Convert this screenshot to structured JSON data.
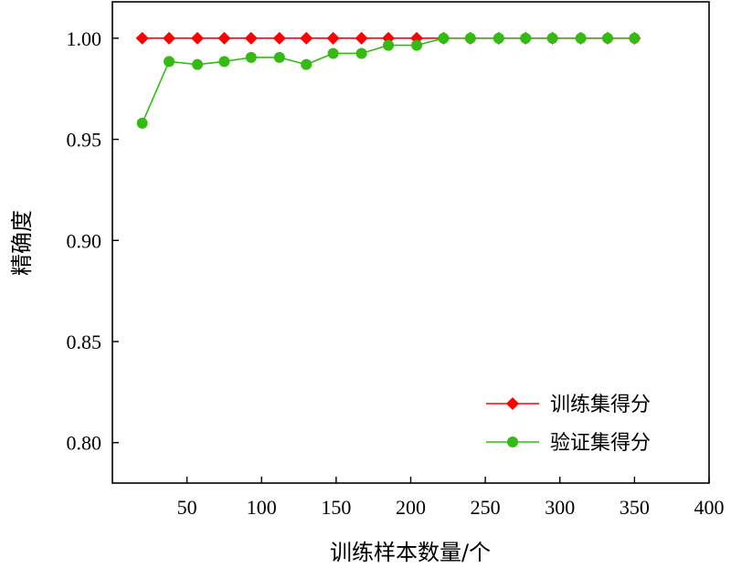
{
  "chart_data": {
    "type": "line",
    "xlabel": "训练样本数量/个",
    "ylabel": "精确度",
    "xlim": [
      0,
      400
    ],
    "ylim": [
      0.78,
      1.018
    ],
    "xticks": [
      50,
      100,
      150,
      200,
      250,
      300,
      350,
      400
    ],
    "yticks": [
      0.8,
      0.85,
      0.9,
      0.95,
      1.0
    ],
    "xtick_labels": [
      "50",
      "100",
      "150",
      "200",
      "250",
      "300",
      "350",
      "400"
    ],
    "ytick_labels": [
      "0.80",
      "0.85",
      "0.90",
      "0.95",
      "1.00"
    ],
    "grid": false,
    "legend_position": "bottom-right",
    "x": [
      20,
      38,
      57,
      75,
      93,
      112,
      130,
      148,
      167,
      185,
      204,
      222,
      240,
      259,
      277,
      295,
      314,
      332,
      350
    ],
    "series": [
      {
        "name": "训练集得分",
        "color": "#ff0000",
        "marker": "diamond",
        "values": [
          1.0,
          1.0,
          1.0,
          1.0,
          1.0,
          1.0,
          1.0,
          1.0,
          1.0,
          1.0,
          1.0,
          1.0,
          1.0,
          1.0,
          1.0,
          1.0,
          1.0,
          1.0,
          1.0
        ]
      },
      {
        "name": "验证集得分",
        "color": "#33bb11",
        "marker": "circle",
        "values": [
          0.958,
          0.9885,
          0.987,
          0.9885,
          0.9905,
          0.9905,
          0.987,
          0.9925,
          0.9925,
          0.9965,
          0.9965,
          1.0,
          1.0,
          1.0,
          1.0,
          1.0,
          1.0,
          1.0,
          1.0
        ]
      }
    ]
  }
}
